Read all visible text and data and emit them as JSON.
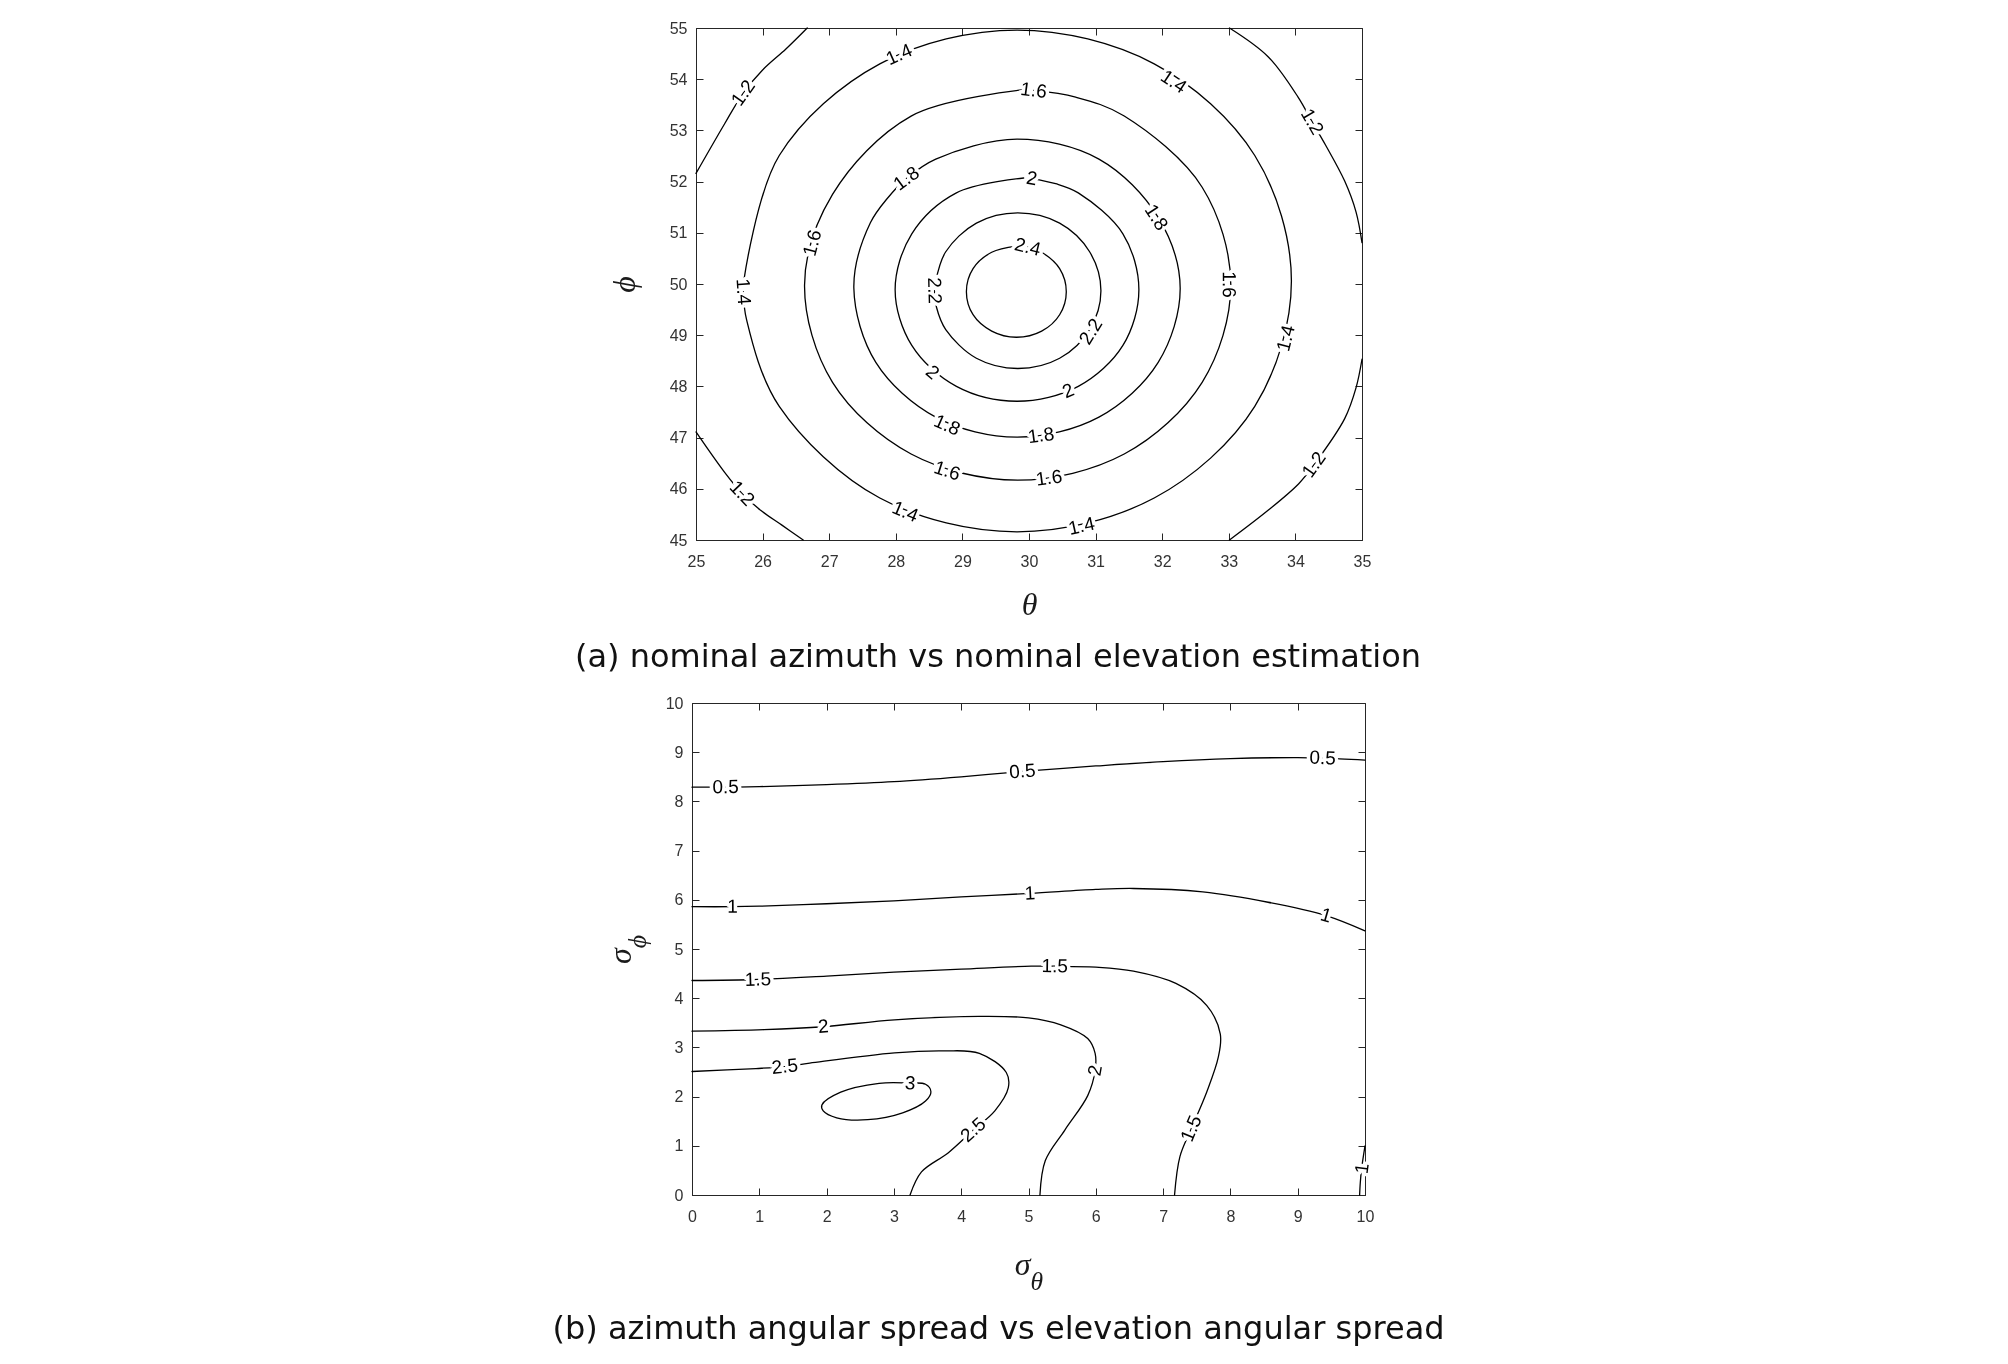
{
  "chart_data": [
    {
      "type": "line",
      "xlabel": "θ",
      "ylabel": "ϕ",
      "xlim": [
        25,
        35
      ],
      "ylim": [
        45,
        55
      ],
      "xticks": [
        25,
        26,
        27,
        28,
        29,
        30,
        31,
        32,
        33,
        34,
        35
      ],
      "yticks": [
        45,
        46,
        47,
        48,
        49,
        50,
        51,
        52,
        53,
        54,
        55
      ],
      "series": [
        {
          "color": "#000000",
          "x": [
            29.98,
            30.19,
            30.46,
            30.56,
            30.46,
            30.19,
            29.81,
            29.44,
            29.16,
            29.06,
            29.16,
            29.44,
            29.81
          ],
          "values": [
            50.72,
            50.62,
            50.3,
            49.85,
            49.4,
            49.08,
            48.96,
            49.08,
            49.4,
            49.85,
            50.3,
            50.62,
            50.74
          ]
        },
        {
          "color": "#000000",
          "x": [
            28.58,
            28.61,
            28.75,
            29.21,
            29.83,
            30.46,
            30.91,
            31.08,
            30.91,
            30.46,
            29.83,
            29.21,
            28.75,
            28.6
          ],
          "values": [
            49.87,
            49.55,
            49.11,
            48.55,
            48.35,
            48.55,
            49.11,
            49.87,
            50.63,
            51.19,
            51.39,
            51.19,
            50.63,
            50.05
          ]
        },
        {
          "color": "#000000",
          "x": [
            30.04,
            30.4,
            30.74,
            31.41,
            31.65,
            31.41,
            30.74,
            29.82,
            28.91,
            28.24,
            27.99,
            28.24,
            28.91,
            29.92
          ],
          "values": [
            52.06,
            51.96,
            51.78,
            50.98,
            49.89,
            48.8,
            48,
            47.71,
            48,
            48.8,
            49.89,
            50.98,
            51.78,
            52.07
          ]
        },
        {
          "color": "#000000",
          "x": [
            28.16,
            28.6,
            29.82,
            31.05,
            31.94,
            32.27,
            31.94,
            31.05,
            29.82,
            28.6,
            27.7,
            27.37,
            27.62,
            28.02
          ],
          "values": [
            52.06,
            52.44,
            52.83,
            52.44,
            51.3,
            49.92,
            48.47,
            47.4,
            47.01,
            47.4,
            48.47,
            49.92,
            51.2,
            51.89
          ]
        },
        {
          "color": "#000000",
          "x": [
            30.07,
            30.7,
            31.43,
            32.6,
            33.03,
            32.6,
            31.43,
            29.83,
            28.23,
            27.05,
            26.63,
            27.05,
            28.23,
            29.9
          ],
          "values": [
            53.78,
            53.65,
            53.28,
            51.89,
            49.98,
            48.08,
            46.68,
            46.17,
            46.68,
            48.08,
            49.98,
            51.75,
            53.28,
            53.79
          ]
        },
        {
          "color": "#000000",
          "x": [
            25.71,
            25.76,
            26.25,
            27.76,
            29.82,
            31.88,
            33.39,
            33.94,
            33.39,
            31.88,
            29.82,
            27.76,
            26.25,
            25.72
          ],
          "values": [
            49.85,
            49.3,
            47.61,
            45.82,
            45.16,
            45.82,
            47.61,
            50.06,
            52.51,
            54.3,
            54.96,
            54.3,
            52.51,
            50.08
          ]
        },
        {
          "color": "#000000",
          "x": [
            25,
            25.43,
            25.71,
            26,
            26.35,
            26.67
          ],
          "values": [
            52.16,
            53.13,
            53.73,
            54.18,
            54.59,
            55
          ]
        },
        {
          "color": "#000000",
          "x": [
            25,
            25.43,
            25.69,
            25.97,
            26.29,
            26.61
          ],
          "values": [
            47.11,
            46.32,
            45.91,
            45.58,
            45.29,
            45
          ]
        },
        {
          "color": "#000000",
          "x": [
            33.01,
            33.59,
            34.04,
            34.25,
            34.45,
            34.74,
            34.91,
            35
          ],
          "values": [
            55,
            54.44,
            53.65,
            53.17,
            52.72,
            52.01,
            51.41,
            50.81
          ]
        },
        {
          "color": "#000000",
          "x": [
            35,
            34.91,
            34.74,
            34.28,
            34.05,
            33.59,
            33.01
          ],
          "values": [
            48.53,
            47.97,
            47.37,
            46.47,
            46.1,
            45.58,
            45
          ]
        }
      ],
      "annotations": [
        "(a) nominal azimuth vs nominal elevation estimation",
        {
          "text": "1.2",
          "x": 25.71,
          "y": 53.73
        },
        {
          "text": "1.4",
          "x": 28.05,
          "y": 54.48
        },
        {
          "text": "1.6",
          "x": 30.07,
          "y": 53.78
        },
        {
          "text": "1.4",
          "x": 32.17,
          "y": 53.95
        },
        {
          "text": "1.2",
          "x": 34.25,
          "y": 53.17
        },
        {
          "text": "1.8",
          "x": 28.16,
          "y": 52.06
        },
        {
          "text": "2",
          "x": 30.04,
          "y": 52.06
        },
        {
          "text": "1.8",
          "x": 31.91,
          "y": 51.3
        },
        {
          "text": "1.6",
          "x": 26.75,
          "y": 50.8
        },
        {
          "text": "2.4",
          "x": 29.98,
          "y": 50.72
        },
        {
          "text": "1.4",
          "x": 25.71,
          "y": 49.85
        },
        {
          "text": "2.2",
          "x": 28.58,
          "y": 49.87
        },
        {
          "text": "1.6",
          "x": 33,
          "y": 49.99
        },
        {
          "text": "1.4",
          "x": 33.86,
          "y": 48.94
        },
        {
          "text": "2.2",
          "x": 30.93,
          "y": 49.07
        },
        {
          "text": "2",
          "x": 28.55,
          "y": 48.27
        },
        {
          "text": "2",
          "x": 30.59,
          "y": 47.91
        },
        {
          "text": "1.8",
          "x": 28.77,
          "y": 47.24
        },
        {
          "text": "1.8",
          "x": 30.18,
          "y": 47.04
        },
        {
          "text": "1.6",
          "x": 28.77,
          "y": 46.35
        },
        {
          "text": "1.6",
          "x": 30.3,
          "y": 46.21
        },
        {
          "text": "1.2",
          "x": 25.69,
          "y": 45.91
        },
        {
          "text": "1.4",
          "x": 28.14,
          "y": 45.55
        },
        {
          "text": "1.4",
          "x": 30.79,
          "y": 45.27
        },
        {
          "text": "1.2",
          "x": 34.28,
          "y": 46.47
        }
      ]
    },
    {
      "type": "line",
      "xlabel": "σ$_{θ}$",
      "ylabel": "σ$_{ϕ}$",
      "xlim": [
        0,
        10
      ],
      "ylim": [
        0,
        10
      ],
      "xticks": [
        0,
        1,
        2,
        3,
        4,
        5,
        6,
        7,
        8,
        9,
        10
      ],
      "yticks": [
        0,
        1,
        2,
        3,
        4,
        5,
        6,
        7,
        8,
        9,
        10
      ],
      "series": [
        {
          "color": "#000000",
          "x": [
            0,
            0.5,
            1,
            2,
            3,
            4,
            4.91,
            6,
            7,
            8,
            9,
            9.37,
            10
          ],
          "values": [
            8.29,
            8.29,
            8.3,
            8.34,
            8.4,
            8.5,
            8.61,
            8.72,
            8.81,
            8.87,
            8.89,
            8.88,
            8.84
          ]
        },
        {
          "color": "#000000",
          "x": [
            0,
            0.6,
            1,
            2,
            3,
            4,
            5.02,
            6,
            6.56,
            7.59,
            8.56,
            9.42,
            10
          ],
          "values": [
            5.86,
            5.86,
            5.87,
            5.92,
            5.98,
            6.06,
            6.13,
            6.21,
            6.23,
            6.16,
            5.95,
            5.68,
            5.37
          ]
        },
        {
          "color": "#000000",
          "x": [
            0,
            0.98,
            2,
            3,
            4,
            5.04,
            5.39,
            6,
            6.56,
            7.19,
            7.65,
            7.85,
            7.82,
            7.65,
            7.42,
            7.25,
            7.17
          ],
          "values": [
            4.36,
            4.38,
            4.45,
            4.53,
            4.59,
            4.65,
            4.65,
            4.63,
            4.55,
            4.3,
            3.85,
            3.27,
            2.8,
            2.1,
            1.35,
            0.78,
            0
          ]
        },
        {
          "color": "#000000",
          "x": [
            0,
            1.07,
            1.95,
            3.01,
            4.27,
            5,
            5.48,
            5.88,
            5.99,
            5.99,
            5.88,
            5.54,
            5.25,
            5.17
          ],
          "values": [
            3.33,
            3.36,
            3.42,
            3.56,
            3.63,
            3.6,
            3.46,
            3.18,
            2.88,
            2.53,
            2.02,
            1.32,
            0.7,
            0
          ]
        },
        {
          "color": "#000000",
          "x": [
            0,
            0.95,
            1.38,
            1.75,
            3.01,
            3.75,
            4.27,
            4.67,
            4.7,
            4.5,
            4.18,
            3.81,
            3.41,
            3.24
          ],
          "values": [
            2.51,
            2.57,
            2.61,
            2.68,
            2.89,
            2.93,
            2.88,
            2.49,
            2.18,
            1.71,
            1.32,
            0.86,
            0.47,
            0
          ]
        },
        {
          "color": "#000000",
          "x": [
            3.24,
            3.47,
            3.55,
            3.47,
            3.13,
            2.61,
            2.15,
            1.95,
            1.93,
            2.21,
            2.78,
            3.14
          ],
          "values": [
            2.27,
            2.25,
            2.1,
            1.91,
            1.67,
            1.53,
            1.57,
            1.71,
            1.83,
            2.09,
            2.27,
            2.28
          ]
        },
        {
          "color": "#000000",
          "x": [
            10,
            9.95,
            9.93,
            9.92
          ],
          "values": [
            1,
            0.54,
            0.25,
            0
          ]
        }
      ],
      "annotations": [
        "(b) azimuth angular spread vs elevation angular spread",
        {
          "text": "0.5",
          "x": 0.5,
          "y": 8.29
        },
        {
          "text": "0.5",
          "x": 4.91,
          "y": 8.61
        },
        {
          "text": "0.5",
          "x": 9.37,
          "y": 8.88
        },
        {
          "text": "1",
          "x": 0.6,
          "y": 5.86
        },
        {
          "text": "1",
          "x": 5.02,
          "y": 6.13
        },
        {
          "text": "1",
          "x": 9.42,
          "y": 5.68
        },
        {
          "text": "1.5",
          "x": 0.98,
          "y": 4.38
        },
        {
          "text": "1.5",
          "x": 5.39,
          "y": 4.65
        },
        {
          "text": "1.5",
          "x": 7.42,
          "y": 1.35
        },
        {
          "text": "2",
          "x": 1.95,
          "y": 3.42
        },
        {
          "text": "2",
          "x": 5.99,
          "y": 2.53
        },
        {
          "text": "2.5",
          "x": 1.38,
          "y": 2.61
        },
        {
          "text": "2.5",
          "x": 4.18,
          "y": 1.32
        },
        {
          "text": "3",
          "x": 3.24,
          "y": 2.27
        },
        {
          "text": "1",
          "x": 9.96,
          "y": 0.54
        }
      ]
    }
  ]
}
